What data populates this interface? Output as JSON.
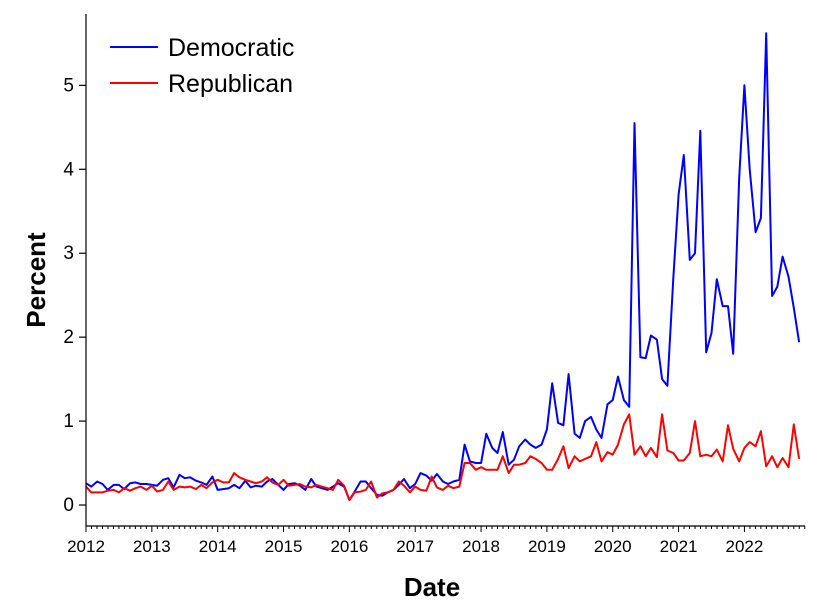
{
  "chart_data": {
    "type": "line",
    "xlabel": "Date",
    "ylabel": "Percent",
    "x_ticks": [
      "2012",
      "2013",
      "2014",
      "2015",
      "2016",
      "2017",
      "2018",
      "2019",
      "2020",
      "2021",
      "2022"
    ],
    "y_ticks": [
      "0",
      "1",
      "2",
      "3",
      "4",
      "5"
    ],
    "xlim": [
      2012.0,
      2022.92
    ],
    "ylim": [
      -0.25,
      5.85
    ],
    "legend_position": "top-left",
    "grid": false,
    "series": [
      {
        "name": "Democratic",
        "color": "#0000ff",
        "points": [
          [
            2012.0,
            0.26
          ],
          [
            2012.08,
            0.22
          ],
          [
            2012.17,
            0.28
          ],
          [
            2012.25,
            0.25
          ],
          [
            2012.33,
            0.18
          ],
          [
            2012.42,
            0.24
          ],
          [
            2012.5,
            0.24
          ],
          [
            2012.58,
            0.19
          ],
          [
            2012.67,
            0.26
          ],
          [
            2012.75,
            0.27
          ],
          [
            2012.83,
            0.25
          ],
          [
            2012.92,
            0.25
          ],
          [
            2013.0,
            0.24
          ],
          [
            2013.08,
            0.23
          ],
          [
            2013.17,
            0.3
          ],
          [
            2013.25,
            0.32
          ],
          [
            2013.33,
            0.21
          ],
          [
            2013.42,
            0.36
          ],
          [
            2013.5,
            0.32
          ],
          [
            2013.58,
            0.33
          ],
          [
            2013.67,
            0.29
          ],
          [
            2013.75,
            0.27
          ],
          [
            2013.83,
            0.24
          ],
          [
            2013.92,
            0.34
          ],
          [
            2014.0,
            0.18
          ],
          [
            2014.08,
            0.19
          ],
          [
            2014.17,
            0.2
          ],
          [
            2014.25,
            0.24
          ],
          [
            2014.33,
            0.2
          ],
          [
            2014.42,
            0.29
          ],
          [
            2014.5,
            0.21
          ],
          [
            2014.58,
            0.23
          ],
          [
            2014.67,
            0.22
          ],
          [
            2014.75,
            0.28
          ],
          [
            2014.83,
            0.31
          ],
          [
            2014.92,
            0.24
          ],
          [
            2015.0,
            0.18
          ],
          [
            2015.08,
            0.25
          ],
          [
            2015.17,
            0.26
          ],
          [
            2015.25,
            0.23
          ],
          [
            2015.33,
            0.18
          ],
          [
            2015.42,
            0.31
          ],
          [
            2015.5,
            0.22
          ],
          [
            2015.58,
            0.2
          ],
          [
            2015.67,
            0.18
          ],
          [
            2015.75,
            0.22
          ],
          [
            2015.83,
            0.26
          ],
          [
            2015.92,
            0.22
          ],
          [
            2016.0,
            0.06
          ],
          [
            2016.08,
            0.16
          ],
          [
            2016.17,
            0.28
          ],
          [
            2016.25,
            0.28
          ],
          [
            2016.33,
            0.2
          ],
          [
            2016.42,
            0.12
          ],
          [
            2016.5,
            0.11
          ],
          [
            2016.58,
            0.15
          ],
          [
            2016.67,
            0.18
          ],
          [
            2016.75,
            0.24
          ],
          [
            2016.83,
            0.31
          ],
          [
            2016.92,
            0.2
          ],
          [
            2017.0,
            0.25
          ],
          [
            2017.08,
            0.38
          ],
          [
            2017.17,
            0.35
          ],
          [
            2017.25,
            0.29
          ],
          [
            2017.33,
            0.37
          ],
          [
            2017.42,
            0.28
          ],
          [
            2017.5,
            0.25
          ],
          [
            2017.58,
            0.28
          ],
          [
            2017.67,
            0.3
          ],
          [
            2017.75,
            0.72
          ],
          [
            2017.83,
            0.52
          ],
          [
            2017.92,
            0.5
          ],
          [
            2018.0,
            0.5
          ],
          [
            2018.08,
            0.85
          ],
          [
            2018.17,
            0.68
          ],
          [
            2018.25,
            0.62
          ],
          [
            2018.33,
            0.87
          ],
          [
            2018.42,
            0.48
          ],
          [
            2018.5,
            0.54
          ],
          [
            2018.58,
            0.7
          ],
          [
            2018.67,
            0.78
          ],
          [
            2018.75,
            0.72
          ],
          [
            2018.83,
            0.68
          ],
          [
            2018.92,
            0.72
          ],
          [
            2019.0,
            0.9
          ],
          [
            2019.08,
            1.45
          ],
          [
            2019.17,
            0.98
          ],
          [
            2019.25,
            0.95
          ],
          [
            2019.33,
            1.56
          ],
          [
            2019.42,
            0.85
          ],
          [
            2019.5,
            0.8
          ],
          [
            2019.58,
            1.0
          ],
          [
            2019.67,
            1.05
          ],
          [
            2019.75,
            0.9
          ],
          [
            2019.83,
            0.8
          ],
          [
            2019.92,
            1.2
          ],
          [
            2020.0,
            1.25
          ],
          [
            2020.08,
            1.53
          ],
          [
            2020.17,
            1.25
          ],
          [
            2020.25,
            1.17
          ],
          [
            2020.33,
            4.55
          ],
          [
            2020.42,
            1.76
          ],
          [
            2020.5,
            1.75
          ],
          [
            2020.58,
            2.02
          ],
          [
            2020.67,
            1.97
          ],
          [
            2020.75,
            1.5
          ],
          [
            2020.83,
            1.42
          ],
          [
            2020.92,
            2.7
          ],
          [
            2021.0,
            3.7
          ],
          [
            2021.08,
            4.17
          ],
          [
            2021.17,
            2.92
          ],
          [
            2021.25,
            3.0
          ],
          [
            2021.33,
            4.46
          ],
          [
            2021.42,
            1.82
          ],
          [
            2021.5,
            2.05
          ],
          [
            2021.58,
            2.69
          ],
          [
            2021.67,
            2.37
          ],
          [
            2021.75,
            2.37
          ],
          [
            2021.83,
            1.8
          ],
          [
            2021.92,
            3.9
          ],
          [
            2022.0,
            5.0
          ],
          [
            2022.08,
            4.0
          ],
          [
            2022.17,
            3.25
          ],
          [
            2022.25,
            3.42
          ],
          [
            2022.33,
            5.62
          ],
          [
            2022.42,
            2.49
          ],
          [
            2022.5,
            2.6
          ],
          [
            2022.58,
            2.96
          ],
          [
            2022.67,
            2.72
          ],
          [
            2022.75,
            2.35
          ],
          [
            2022.83,
            1.94
          ]
        ]
      },
      {
        "name": "Republican",
        "color": "#ff0000",
        "points": [
          [
            2012.0,
            0.22
          ],
          [
            2012.08,
            0.15
          ],
          [
            2012.17,
            0.15
          ],
          [
            2012.25,
            0.15
          ],
          [
            2012.33,
            0.17
          ],
          [
            2012.42,
            0.18
          ],
          [
            2012.5,
            0.15
          ],
          [
            2012.58,
            0.2
          ],
          [
            2012.67,
            0.17
          ],
          [
            2012.75,
            0.2
          ],
          [
            2012.83,
            0.22
          ],
          [
            2012.92,
            0.18
          ],
          [
            2013.0,
            0.23
          ],
          [
            2013.08,
            0.16
          ],
          [
            2013.17,
            0.18
          ],
          [
            2013.25,
            0.28
          ],
          [
            2013.33,
            0.18
          ],
          [
            2013.42,
            0.22
          ],
          [
            2013.5,
            0.21
          ],
          [
            2013.58,
            0.22
          ],
          [
            2013.67,
            0.19
          ],
          [
            2013.75,
            0.24
          ],
          [
            2013.83,
            0.2
          ],
          [
            2013.92,
            0.27
          ],
          [
            2014.0,
            0.3
          ],
          [
            2014.08,
            0.27
          ],
          [
            2014.17,
            0.27
          ],
          [
            2014.25,
            0.38
          ],
          [
            2014.33,
            0.33
          ],
          [
            2014.42,
            0.3
          ],
          [
            2014.5,
            0.28
          ],
          [
            2014.58,
            0.26
          ],
          [
            2014.67,
            0.28
          ],
          [
            2014.75,
            0.33
          ],
          [
            2014.83,
            0.27
          ],
          [
            2014.92,
            0.24
          ],
          [
            2015.0,
            0.3
          ],
          [
            2015.08,
            0.23
          ],
          [
            2015.17,
            0.24
          ],
          [
            2015.25,
            0.25
          ],
          [
            2015.33,
            0.22
          ],
          [
            2015.42,
            0.21
          ],
          [
            2015.5,
            0.24
          ],
          [
            2015.58,
            0.22
          ],
          [
            2015.67,
            0.2
          ],
          [
            2015.75,
            0.18
          ],
          [
            2015.83,
            0.3
          ],
          [
            2015.92,
            0.23
          ],
          [
            2016.0,
            0.06
          ],
          [
            2016.08,
            0.15
          ],
          [
            2016.17,
            0.16
          ],
          [
            2016.25,
            0.18
          ],
          [
            2016.33,
            0.28
          ],
          [
            2016.42,
            0.09
          ],
          [
            2016.5,
            0.14
          ],
          [
            2016.58,
            0.15
          ],
          [
            2016.67,
            0.18
          ],
          [
            2016.75,
            0.28
          ],
          [
            2016.83,
            0.23
          ],
          [
            2016.92,
            0.15
          ],
          [
            2017.0,
            0.22
          ],
          [
            2017.08,
            0.18
          ],
          [
            2017.17,
            0.17
          ],
          [
            2017.25,
            0.34
          ],
          [
            2017.33,
            0.21
          ],
          [
            2017.42,
            0.18
          ],
          [
            2017.5,
            0.23
          ],
          [
            2017.58,
            0.2
          ],
          [
            2017.67,
            0.22
          ],
          [
            2017.75,
            0.5
          ],
          [
            2017.83,
            0.5
          ],
          [
            2017.92,
            0.42
          ],
          [
            2018.0,
            0.45
          ],
          [
            2018.08,
            0.42
          ],
          [
            2018.17,
            0.42
          ],
          [
            2018.25,
            0.42
          ],
          [
            2018.33,
            0.58
          ],
          [
            2018.42,
            0.38
          ],
          [
            2018.5,
            0.48
          ],
          [
            2018.58,
            0.48
          ],
          [
            2018.67,
            0.5
          ],
          [
            2018.75,
            0.58
          ],
          [
            2018.83,
            0.55
          ],
          [
            2018.92,
            0.5
          ],
          [
            2019.0,
            0.42
          ],
          [
            2019.08,
            0.42
          ],
          [
            2019.17,
            0.55
          ],
          [
            2019.25,
            0.7
          ],
          [
            2019.33,
            0.44
          ],
          [
            2019.42,
            0.58
          ],
          [
            2019.5,
            0.52
          ],
          [
            2019.58,
            0.55
          ],
          [
            2019.67,
            0.58
          ],
          [
            2019.75,
            0.75
          ],
          [
            2019.83,
            0.52
          ],
          [
            2019.92,
            0.63
          ],
          [
            2020.0,
            0.6
          ],
          [
            2020.08,
            0.72
          ],
          [
            2020.17,
            0.96
          ],
          [
            2020.25,
            1.08
          ],
          [
            2020.33,
            0.6
          ],
          [
            2020.42,
            0.7
          ],
          [
            2020.5,
            0.58
          ],
          [
            2020.58,
            0.68
          ],
          [
            2020.67,
            0.57
          ],
          [
            2020.75,
            1.08
          ],
          [
            2020.83,
            0.65
          ],
          [
            2020.92,
            0.62
          ],
          [
            2021.0,
            0.53
          ],
          [
            2021.08,
            0.53
          ],
          [
            2021.17,
            0.62
          ],
          [
            2021.25,
            1.0
          ],
          [
            2021.33,
            0.58
          ],
          [
            2021.42,
            0.6
          ],
          [
            2021.5,
            0.58
          ],
          [
            2021.58,
            0.66
          ],
          [
            2021.67,
            0.52
          ],
          [
            2021.75,
            0.95
          ],
          [
            2021.83,
            0.67
          ],
          [
            2021.92,
            0.52
          ],
          [
            2022.0,
            0.68
          ],
          [
            2022.08,
            0.75
          ],
          [
            2022.17,
            0.7
          ],
          [
            2022.25,
            0.88
          ],
          [
            2022.33,
            0.46
          ],
          [
            2022.42,
            0.58
          ],
          [
            2022.5,
            0.45
          ],
          [
            2022.58,
            0.56
          ],
          [
            2022.67,
            0.45
          ],
          [
            2022.75,
            0.96
          ],
          [
            2022.83,
            0.55
          ]
        ]
      }
    ]
  }
}
